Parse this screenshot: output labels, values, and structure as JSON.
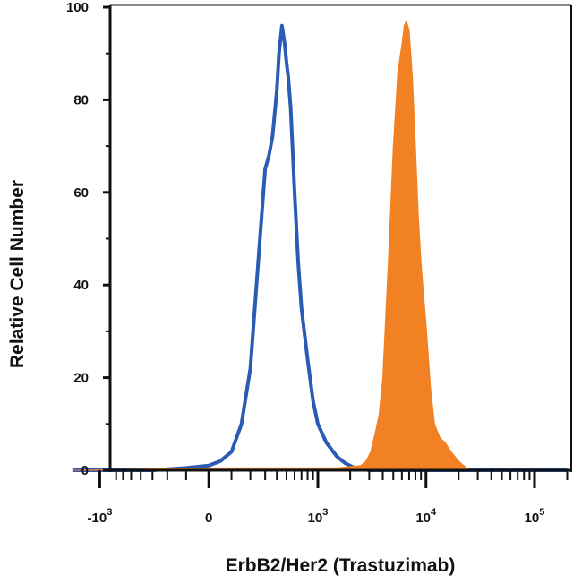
{
  "chart_data": {
    "type": "area",
    "title": "",
    "xlabel": "ErbB2/Her2 (Trastuzimab)",
    "ylabel": "Relative Cell Number",
    "x_scale": "biexponential",
    "xlim": [
      -2000,
      200000
    ],
    "ylim": [
      0,
      100
    ],
    "y_ticks": [
      {
        "value": 0,
        "label": "0"
      },
      {
        "value": 20,
        "label": "20"
      },
      {
        "value": 40,
        "label": "40"
      },
      {
        "value": 60,
        "label": "60"
      },
      {
        "value": 80,
        "label": "80"
      },
      {
        "value": 100,
        "label": "100"
      }
    ],
    "x_ticks": [
      {
        "value": -1000,
        "base": "-10",
        "exp": "3"
      },
      {
        "value": 0,
        "base": "0",
        "exp": ""
      },
      {
        "value": 1000,
        "base": "10",
        "exp": "3"
      },
      {
        "value": 10000,
        "base": "10",
        "exp": "4"
      },
      {
        "value": 100000,
        "base": "10",
        "exp": "5"
      }
    ],
    "grid": false,
    "legend": "none",
    "series": [
      {
        "style": "outline",
        "color": "#2a5bb5",
        "x": [
          -1800,
          -300,
          -100,
          0,
          50,
          100,
          150,
          200,
          250,
          300,
          330,
          360,
          400,
          420,
          450,
          480,
          500,
          520,
          550,
          600,
          650,
          700,
          800,
          900,
          1000,
          1200,
          1500,
          1800,
          2200,
          3000,
          200000
        ],
        "y": [
          0,
          0,
          0.5,
          1,
          2,
          4,
          10,
          22,
          45,
          65,
          68,
          72,
          82,
          90,
          96,
          92,
          88,
          85,
          78,
          60,
          45,
          35,
          24,
          15,
          10,
          6,
          3,
          1.5,
          0.5,
          0,
          0
        ]
      },
      {
        "style": "filled",
        "color": "#f28123",
        "x": [
          -1800,
          0,
          1500,
          2500,
          2800,
          3100,
          3400,
          3700,
          4000,
          4500,
          5000,
          5500,
          6000,
          6300,
          6600,
          7000,
          7500,
          8000,
          8500,
          9000,
          9500,
          10000,
          11000,
          12000,
          13500,
          15000,
          17000,
          20000,
          25000,
          200000
        ],
        "y": [
          0,
          0.5,
          0.5,
          1,
          2,
          4,
          8,
          12,
          20,
          45,
          70,
          86,
          92,
          96,
          97,
          95,
          85,
          70,
          55,
          45,
          38,
          32,
          18,
          10,
          7,
          6,
          4,
          2,
          0,
          0
        ]
      }
    ]
  }
}
